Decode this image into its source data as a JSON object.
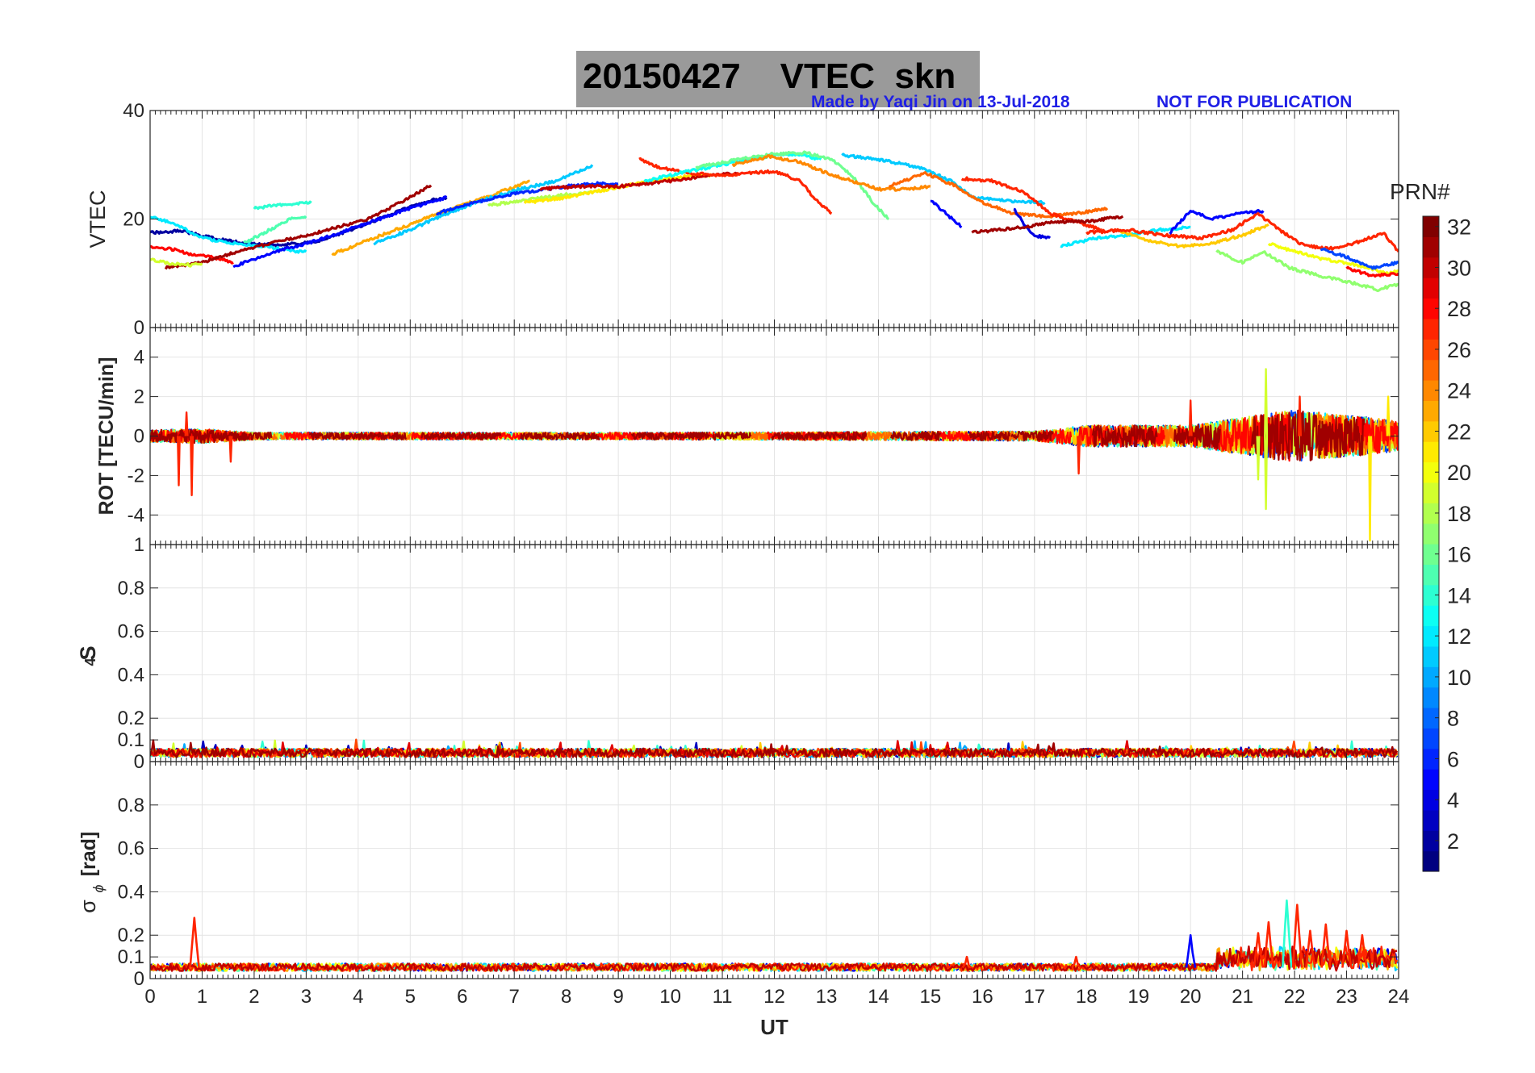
{
  "header": {
    "title": "20150427    VTEC  skn",
    "credit": "Made by Yaqi Jin on 13-Jul-2018",
    "notice": "NOT FOR PUBLICATION",
    "credit_color": "#1f1fe6",
    "title_box_color": "#9a9a9a"
  },
  "chart_data": [
    {
      "type": "line",
      "panel": "VTEC",
      "ylabel": "VTEC",
      "ylim": [
        0,
        40
      ],
      "yticks": [
        0,
        20,
        40
      ],
      "xlim": [
        0,
        24
      ],
      "grid": true,
      "series_note_colors": "jet colormap by PRN",
      "tracks": [
        {
          "prn": 2,
          "points": [
            [
              0,
              17.5
            ],
            [
              0.6,
              17.8
            ],
            [
              1.2,
              16.5
            ],
            [
              1.8,
              15.5
            ],
            [
              2.5,
              15.2
            ],
            [
              3.2,
              15.8
            ],
            [
              4.0,
              18.5
            ],
            [
              4.8,
              21.5
            ],
            [
              5.4,
              23.5
            ],
            [
              5.7,
              24.0
            ]
          ]
        },
        {
          "prn": 12,
          "points": [
            [
              0,
              20.5
            ],
            [
              0.5,
              19.0
            ],
            [
              1.0,
              16.5
            ],
            [
              1.6,
              15.5
            ],
            [
              2.2,
              15.0
            ],
            [
              2.8,
              14.0
            ],
            [
              3.0,
              14.0
            ]
          ]
        },
        {
          "prn": 28,
          "points": [
            [
              0,
              15.0
            ],
            [
              0.4,
              14.5
            ],
            [
              0.8,
              13.5
            ],
            [
              1.2,
              13.0
            ],
            [
              1.6,
              12.0
            ]
          ]
        },
        {
          "prn": 31,
          "points": [
            [
              0.3,
              11.0
            ],
            [
              1.0,
              12.0
            ],
            [
              1.6,
              13.8
            ],
            [
              2.3,
              15.5
            ],
            [
              3.0,
              17.0
            ],
            [
              3.6,
              18.5
            ],
            [
              4.2,
              20.0
            ],
            [
              4.8,
              23.0
            ],
            [
              5.4,
              26.2
            ]
          ]
        },
        {
          "prn": 19,
          "points": [
            [
              0,
              12.5
            ],
            [
              0.4,
              11.8
            ],
            [
              0.8,
              11.5
            ],
            [
              1.0,
              11.8
            ]
          ]
        },
        {
          "prn": 15,
          "points": [
            [
              1.8,
              15.5
            ],
            [
              2.3,
              18.0
            ],
            [
              2.7,
              20.0
            ],
            [
              3.0,
              20.2
            ]
          ]
        },
        {
          "prn": 14,
          "points": [
            [
              2.0,
              22.0
            ],
            [
              2.4,
              22.5
            ],
            [
              2.8,
              22.8
            ],
            [
              3.1,
              23.0
            ]
          ]
        },
        {
          "prn": 5,
          "points": [
            [
              1.6,
              11.2
            ],
            [
              2.4,
              14.0
            ],
            [
              3.2,
              16.0
            ],
            [
              3.8,
              18.0
            ],
            [
              4.4,
              20.0
            ],
            [
              5.0,
              22.0
            ],
            [
              5.7,
              24.0
            ]
          ]
        },
        {
          "prn": 23,
          "points": [
            [
              3.5,
              13.5
            ],
            [
              4.3,
              16.5
            ],
            [
              5.0,
              19.0
            ],
            [
              5.8,
              22.0
            ],
            [
              6.6,
              24.5
            ],
            [
              7.3,
              27.0
            ]
          ]
        },
        {
          "prn": 11,
          "points": [
            [
              4.3,
              15.5
            ],
            [
              5.0,
              18.0
            ],
            [
              5.7,
              21.0
            ],
            [
              6.4,
              23.5
            ],
            [
              7.1,
              25.5
            ],
            [
              7.8,
              27.0
            ],
            [
              8.3,
              29.0
            ],
            [
              8.5,
              30.0
            ]
          ]
        },
        {
          "prn": 6,
          "points": [
            [
              5.5,
              21.0
            ],
            [
              6.2,
              23.0
            ],
            [
              6.9,
              24.5
            ],
            [
              7.6,
              25.5
            ],
            [
              8.4,
              26.5
            ],
            [
              9.0,
              26.5
            ]
          ]
        },
        {
          "prn": 18,
          "points": [
            [
              6.5,
              22.5
            ],
            [
              7.2,
              23.5
            ],
            [
              8.0,
              24.5
            ],
            [
              8.6,
              25.0
            ]
          ]
        },
        {
          "prn": 21,
          "points": [
            [
              7.2,
              23.0
            ],
            [
              8.0,
              24.0
            ],
            [
              8.8,
              25.5
            ],
            [
              9.6,
              27.0
            ],
            [
              10.4,
              28.0
            ],
            [
              10.8,
              28.0
            ]
          ]
        },
        {
          "prn": 30,
          "points": [
            [
              7.5,
              25.5
            ],
            [
              8.2,
              26.0
            ],
            [
              9.0,
              26.0
            ],
            [
              9.8,
              26.8
            ],
            [
              10.6,
              27.8
            ],
            [
              11.3,
              28.5
            ]
          ]
        },
        {
          "prn": 27,
          "points": [
            [
              9.4,
              31.0
            ],
            [
              9.8,
              29.5
            ],
            [
              10.3,
              28.5
            ],
            [
              11.0,
              28.0
            ],
            [
              11.6,
              28.5
            ],
            [
              12.0,
              28.8
            ],
            [
              12.5,
              27.0
            ],
            [
              12.8,
              23.5
            ],
            [
              13.1,
              21.0
            ]
          ]
        },
        {
          "prn": 13,
          "points": [
            [
              9.5,
              27.0
            ],
            [
              10.2,
              28.5
            ],
            [
              11.0,
              30.0
            ],
            [
              11.8,
              31.5
            ],
            [
              12.4,
              32.0
            ],
            [
              12.9,
              31.0
            ]
          ]
        },
        {
          "prn": 16,
          "points": [
            [
              10.5,
              29.5
            ],
            [
              11.3,
              31.0
            ],
            [
              12.0,
              32.0
            ],
            [
              12.6,
              32.2
            ],
            [
              13.1,
              31.0
            ],
            [
              13.5,
              28.0
            ],
            [
              13.9,
              23.0
            ],
            [
              14.2,
              20.0
            ]
          ]
        },
        {
          "prn": 24,
          "points": [
            [
              11.2,
              30.0
            ],
            [
              11.9,
              31.5
            ],
            [
              12.5,
              30.5
            ],
            [
              13.0,
              28.5
            ],
            [
              13.5,
              27.0
            ],
            [
              14.0,
              25.5
            ],
            [
              14.6,
              25.5
            ],
            [
              15.0,
              26.0
            ]
          ]
        },
        {
          "prn": 11,
          "points": [
            [
              13.3,
              31.8
            ],
            [
              14.0,
              31.0
            ],
            [
              14.8,
              29.5
            ],
            [
              15.4,
              27.0
            ],
            [
              15.8,
              24.0
            ],
            [
              16.3,
              23.5
            ],
            [
              17.2,
              23.0
            ]
          ]
        },
        {
          "prn": 25,
          "points": [
            [
              14.2,
              26.0
            ],
            [
              14.9,
              28.5
            ],
            [
              15.5,
              26.0
            ],
            [
              16.0,
              23.0
            ],
            [
              16.6,
              21.0
            ],
            [
              17.2,
              20.5
            ],
            [
              17.8,
              21.0
            ],
            [
              18.4,
              22.0
            ]
          ]
        },
        {
          "prn": 5,
          "points": [
            [
              15.0,
              23.5
            ],
            [
              15.3,
              21.0
            ],
            [
              15.6,
              18.5
            ]
          ]
        },
        {
          "prn": 27,
          "points": [
            [
              15.6,
              27.5
            ],
            [
              16.2,
              27.0
            ],
            [
              16.8,
              25.0
            ],
            [
              17.3,
              21.0
            ],
            [
              17.8,
              19.5
            ],
            [
              18.3,
              18.0
            ]
          ]
        },
        {
          "prn": 4,
          "points": [
            [
              16.6,
              22.0
            ],
            [
              16.8,
              19.0
            ],
            [
              17.0,
              17.0
            ],
            [
              17.3,
              16.5
            ]
          ]
        },
        {
          "prn": 31,
          "points": [
            [
              15.8,
              17.5
            ],
            [
              16.3,
              18.0
            ],
            [
              16.8,
              18.5
            ],
            [
              17.4,
              19.5
            ],
            [
              18.0,
              19.5
            ],
            [
              18.7,
              20.5
            ]
          ]
        },
        {
          "prn": 12,
          "points": [
            [
              17.5,
              15.0
            ],
            [
              18.2,
              16.5
            ],
            [
              18.8,
              17.0
            ],
            [
              19.4,
              18.0
            ],
            [
              20.0,
              18.5
            ]
          ]
        },
        {
          "prn": 22,
          "points": [
            [
              18.6,
              18.0
            ],
            [
              19.2,
              16.0
            ],
            [
              19.8,
              15.0
            ],
            [
              20.4,
              15.5
            ],
            [
              21.0,
              17.0
            ],
            [
              21.5,
              19.0
            ]
          ]
        },
        {
          "prn": 27,
          "points": [
            [
              18.0,
              17.5
            ],
            [
              18.8,
              18.0
            ],
            [
              19.5,
              17.0
            ],
            [
              20.2,
              16.5
            ],
            [
              20.8,
              18.0
            ],
            [
              21.3,
              21.0
            ],
            [
              21.7,
              18.0
            ],
            [
              22.2,
              15.0
            ],
            [
              22.8,
              14.5
            ],
            [
              23.3,
              16.0
            ],
            [
              23.7,
              17.5
            ],
            [
              24,
              14.0
            ]
          ]
        },
        {
          "prn": 5,
          "points": [
            [
              19.6,
              17.5
            ],
            [
              20.0,
              21.5
            ],
            [
              20.4,
              20.0
            ],
            [
              20.9,
              21.0
            ],
            [
              21.4,
              21.5
            ]
          ]
        },
        {
          "prn": 17,
          "points": [
            [
              20.5,
              14.0
            ],
            [
              21.0,
              12.0
            ],
            [
              21.4,
              14.0
            ],
            [
              21.9,
              11.0
            ],
            [
              22.5,
              9.5
            ],
            [
              23.0,
              8.5
            ],
            [
              23.6,
              7.0
            ],
            [
              24,
              8.0
            ]
          ]
        },
        {
          "prn": 20,
          "points": [
            [
              21.5,
              15.5
            ],
            [
              22.0,
              14.0
            ],
            [
              22.6,
              12.5
            ],
            [
              23.2,
              11.5
            ],
            [
              23.8,
              10.0
            ],
            [
              24,
              10.5
            ]
          ]
        },
        {
          "prn": 7,
          "points": [
            [
              22.5,
              14.5
            ],
            [
              23.0,
              13.0
            ],
            [
              23.5,
              11.0
            ],
            [
              24,
              12.0
            ]
          ]
        },
        {
          "prn": 28,
          "points": [
            [
              23.0,
              11.0
            ],
            [
              23.5,
              9.5
            ],
            [
              24,
              10.0
            ]
          ]
        }
      ]
    },
    {
      "type": "line",
      "panel": "ROT",
      "ylabel": "ROT [TECU/min]",
      "ylim": [
        -5.5,
        5.5
      ],
      "yticks": [
        -4,
        -2,
        0,
        2,
        4
      ],
      "xlim": [
        0,
        24
      ],
      "grid": true,
      "noise_profile": [
        [
          0,
          0.5
        ],
        [
          1,
          0.6
        ],
        [
          2,
          0.3
        ],
        [
          10,
          0.3
        ],
        [
          17,
          0.4
        ],
        [
          18,
          0.9
        ],
        [
          20,
          0.9
        ],
        [
          21,
          1.6
        ],
        [
          22,
          2.2
        ],
        [
          24,
          1.3
        ]
      ],
      "spikes": [
        [
          0.55,
          -2.5
        ],
        [
          0.8,
          -3.0
        ],
        [
          0.7,
          1.2
        ],
        [
          1.55,
          -1.3
        ],
        [
          17.85,
          -1.9
        ],
        [
          20.0,
          1.8
        ],
        [
          21.45,
          3.4
        ],
        [
          21.45,
          -3.7
        ],
        [
          23.45,
          -5.3
        ],
        [
          21.3,
          -2.2
        ],
        [
          22.1,
          2.0
        ],
        [
          23.8,
          2.0
        ]
      ]
    },
    {
      "type": "line",
      "panel": "S4",
      "ylabel": "S4",
      "ylim": [
        0,
        1
      ],
      "yticks": [
        0,
        0.1,
        0.2,
        0.4,
        0.6,
        0.8,
        1
      ],
      "xlim": [
        0,
        24
      ],
      "grid": true,
      "baseline": [
        0.02,
        0.06
      ]
    },
    {
      "type": "line",
      "panel": "sigma_phi",
      "ylabel": "σ",
      "ylabel_sub": "ϕ",
      "ylabel_unit": "[rad]",
      "ylim": [
        0,
        1
      ],
      "yticks": [
        0,
        0.1,
        0.2,
        0.4,
        0.6,
        0.8
      ],
      "xlim": [
        0,
        24
      ],
      "grid": true,
      "xlabel": "UT",
      "xticks": [
        0,
        1,
        2,
        3,
        4,
        5,
        6,
        7,
        8,
        9,
        10,
        11,
        12,
        13,
        14,
        15,
        16,
        17,
        18,
        19,
        20,
        21,
        22,
        23,
        24
      ],
      "peaks": [
        [
          0.85,
          0.28
        ],
        [
          20.0,
          0.2
        ],
        [
          21.3,
          0.21
        ],
        [
          21.5,
          0.26
        ],
        [
          21.85,
          0.36
        ],
        [
          22.05,
          0.34
        ],
        [
          22.3,
          0.22
        ],
        [
          22.6,
          0.25
        ],
        [
          23.0,
          0.22
        ],
        [
          23.3,
          0.2
        ],
        [
          17.8,
          0.1
        ],
        [
          15.7,
          0.1
        ]
      ]
    },
    {
      "type": "heatmap",
      "panel": "colorbar",
      "title": "PRN#",
      "range": [
        1,
        32
      ],
      "ticks": [
        2,
        4,
        6,
        8,
        10,
        12,
        14,
        16,
        18,
        20,
        22,
        24,
        26,
        28,
        30,
        32
      ],
      "colormap": "jet"
    }
  ]
}
